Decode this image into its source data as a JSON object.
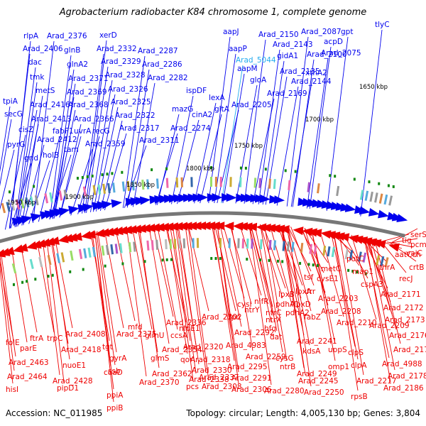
{
  "title": "Agrobacterium radiobacter K84 chromosome 1, complete genome",
  "footer": {
    "accession": "Accession: NC_011985",
    "stats": "Topology: circular; Length: 4,005,130 bp; Genes: 3,804"
  },
  "colors": {
    "forward": "#0000ee",
    "reverse": "#ee0000",
    "highlight": "#22aaee",
    "backbone": "#777777",
    "tick_mark": "#118811"
  },
  "scale_labels": [
    "1950 kbp",
    "1900 kbp",
    "1850 kbp",
    "1800 kbp",
    "1750 kbp",
    "1700 kbp",
    "1650 kbp"
  ],
  "forward_genes": [
    "tpiA",
    "secG",
    "pyrG",
    "gnd",
    "cisZ",
    "metS",
    "tmk",
    "dac",
    "rlpA",
    "Arad_2406",
    "Arad_2416",
    "Arad_2413",
    "Arad_2412",
    "holB",
    "fabF1",
    "tam",
    "Arad_2376",
    "glnB",
    "glnA2",
    "Arad_2371",
    "Arad_2369",
    "Arad_2368",
    "Arad_2366",
    "uvrA",
    "recG",
    "Arad_2359",
    "xerD",
    "Arad_2332",
    "Arad_2329",
    "Arad_2328",
    "Arad_2326",
    "Arad_2325",
    "Arad_2322",
    "Arad_2317",
    "Arad_2311",
    "Arad_2287",
    "Arad_2286",
    "Arad_2282",
    "ispDF",
    "mazG",
    "Arad_2274",
    "cinA2",
    "lexA",
    "gltA",
    "aapJ",
    "aapP",
    "Arad_5044",
    "aapM",
    "gloA",
    "Arad_2205",
    "Arad_2169",
    "Arad_2150",
    "Arad_2143",
    "gidA1",
    "Arad_2135",
    "Arad_2144",
    "Arad_2087",
    "acpD",
    "gpt",
    "tlyC",
    "Arad_2075",
    "Arad_2100",
    "xthA2"
  ],
  "reverse_genes": [
    "folE",
    "parE",
    "ftrA",
    "trpC",
    "Arad_2463",
    "Arad_2464",
    "hisI",
    "Arad_2408",
    "Arad_2418",
    "nuoE1",
    "Arad_2428",
    "pipD1",
    "tgt",
    "ssb",
    "gyrA",
    "coaD",
    "ppiA",
    "ppiB",
    "Arad_2375",
    "mfd",
    "glmU",
    "Arad_2354",
    "glmS",
    "Arad_2362",
    "Arad_2370",
    "Arad_2336",
    "ccsA",
    "nlpE1",
    "Arad_2320",
    "qor",
    "Arad_2318",
    "Arad_2330",
    "Arad_2337",
    "pcs",
    "Arad_2338",
    "Arad_2302",
    "fpr",
    "Arad_2292",
    "Arad_4983",
    "Arad_2295",
    "Arad_2291",
    "Arad_2308",
    "Arad_2306",
    "cysI",
    "ntrY",
    "nifR",
    "ntrC",
    "ntrX",
    "hfq",
    "dat",
    "Arad_2259",
    "cysG",
    "ntrB",
    "Arad_2280",
    "lpxB",
    "lpxA",
    "lpxD",
    "pdhA1",
    "pdhA2",
    "Arad_2241",
    "fabZ",
    "kdsA",
    "Arad_2249",
    "Arad_2245",
    "Arad_2250",
    "tsf",
    "frr",
    "cysE1",
    "metC",
    "Arad_2203",
    "Arad_2208",
    "Arad_2210",
    "uppS",
    "omp1",
    "clpS",
    "clpA",
    "Arad_2217",
    "rpsB",
    "potC",
    "map1",
    "cspA3",
    "Arad_2209",
    "Arad_2171",
    "Arad_2172",
    "Arad_2173",
    "Arad_2176",
    "Arad_2177",
    "Arad_4988",
    "Arad_2178",
    "Arad_2186",
    "tig",
    "aatCch",
    "thrA",
    "recJ",
    "serS",
    "pcm",
    "vajC",
    "crtB"
  ]
}
